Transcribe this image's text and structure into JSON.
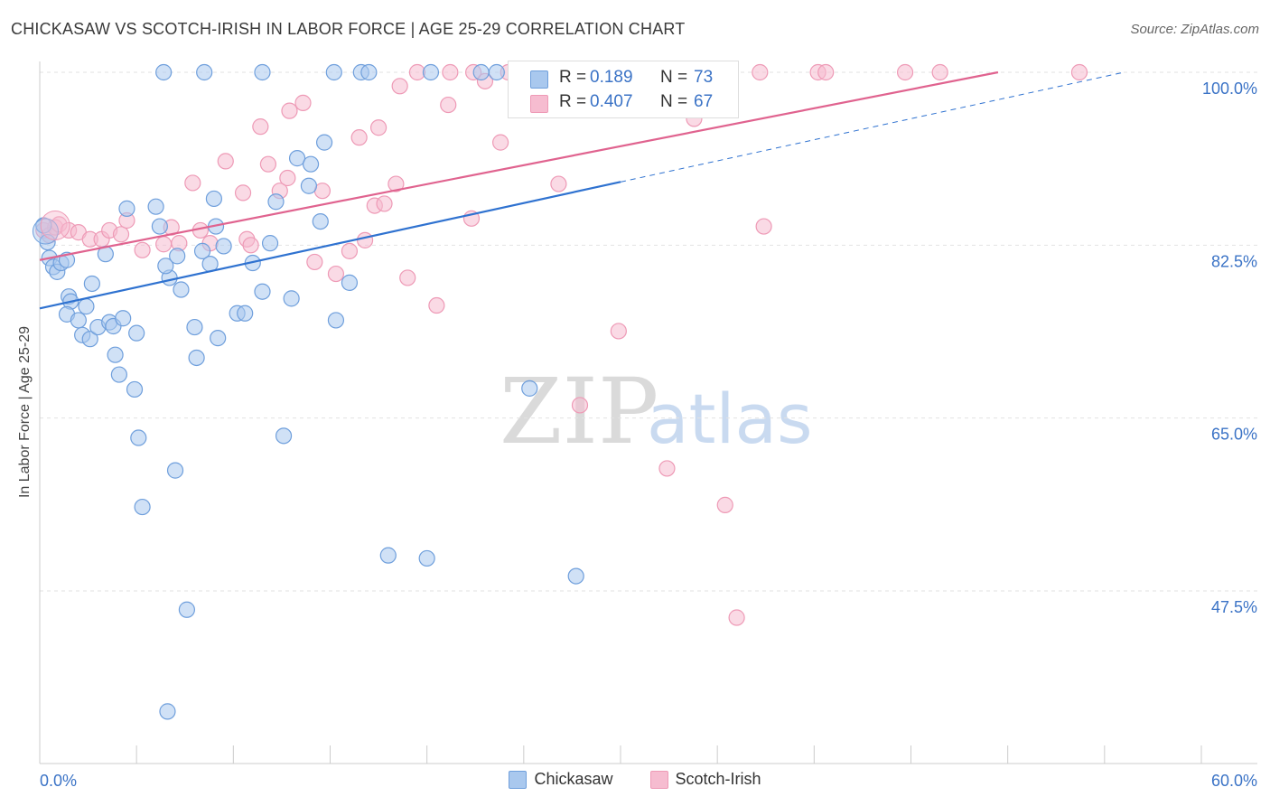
{
  "title": "CHICKASAW VS SCOTCH-IRISH IN LABOR FORCE | AGE 25-29 CORRELATION CHART",
  "source": "Source: ZipAtlas.com",
  "watermark": {
    "zip": "ZIP",
    "atlas": "atlas"
  },
  "colors": {
    "chickasaw_fill": "#a9c8ee",
    "chickasaw_stroke": "#6f9fdc",
    "chickasaw_line": "#2f72d0",
    "scotch_fill": "#f6bcd0",
    "scotch_stroke": "#ee9ab6",
    "scotch_line": "#e0638f",
    "tick_label": "#3b73c6",
    "grid": "#e2e2e2"
  },
  "legend": {
    "rows": [
      {
        "r_label": "R =",
        "r_value": "0.189",
        "n_label": "N =",
        "n_value": "73"
      },
      {
        "r_label": "R =",
        "r_value": "0.407",
        "n_label": "N =",
        "n_value": "67"
      }
    ]
  },
  "bottom_legend": [
    "Chickasaw",
    "Scotch-Irish"
  ],
  "chart_data": {
    "type": "scatter",
    "title": "CHICKASAW VS SCOTCH-IRISH IN LABOR FORCE | AGE 25-29 CORRELATION CHART",
    "xlabel": "",
    "ylabel": "In Labor Force | Age 25-29",
    "xlim": [
      0,
      60
    ],
    "ylim": [
      33,
      102
    ],
    "x_tick_labels": [
      "0.0%",
      "60.0%"
    ],
    "y_ticks": [
      47.5,
      65.0,
      82.5,
      100.0
    ],
    "y_tick_labels": [
      "47.5%",
      "65.0%",
      "82.5%",
      "100.0%"
    ],
    "grid": true,
    "legend_position": "top-center",
    "series": [
      {
        "name": "Chickasaw",
        "R": 0.189,
        "N": 73,
        "trend": {
          "x0": 0,
          "y0": 76.1,
          "x1": 30,
          "y1": 88.9,
          "dashed_to_x": 56,
          "dashed_to_y": 100.0
        },
        "points": [
          [
            0.2,
            84.5
          ],
          [
            0.4,
            82.8
          ],
          [
            0.5,
            81.2
          ],
          [
            0.7,
            80.3
          ],
          [
            0.9,
            79.8
          ],
          [
            1.1,
            80.7
          ],
          [
            1.4,
            81.0
          ],
          [
            1.5,
            77.3
          ],
          [
            1.6,
            76.8
          ],
          [
            1.4,
            75.5
          ],
          [
            2.0,
            74.9
          ],
          [
            2.2,
            73.4
          ],
          [
            2.4,
            76.3
          ],
          [
            2.6,
            73.0
          ],
          [
            2.7,
            78.6
          ],
          [
            3.0,
            74.2
          ],
          [
            3.4,
            81.6
          ],
          [
            3.6,
            74.7
          ],
          [
            3.8,
            74.3
          ],
          [
            3.9,
            71.4
          ],
          [
            4.1,
            69.4
          ],
          [
            4.9,
            67.9
          ],
          [
            4.5,
            86.2
          ],
          [
            4.3,
            75.1
          ],
          [
            5.0,
            73.6
          ],
          [
            5.1,
            63.0
          ],
          [
            5.3,
            56.0
          ],
          [
            6.0,
            86.4
          ],
          [
            6.2,
            84.4
          ],
          [
            6.7,
            79.2
          ],
          [
            7.0,
            59.7
          ],
          [
            7.3,
            78.0
          ],
          [
            7.6,
            45.6
          ],
          [
            6.5,
            80.4
          ],
          [
            7.1,
            81.4
          ],
          [
            8.0,
            74.2
          ],
          [
            8.1,
            71.1
          ],
          [
            8.4,
            81.9
          ],
          [
            8.8,
            80.6
          ],
          [
            9.2,
            73.1
          ],
          [
            9.0,
            87.2
          ],
          [
            9.1,
            84.4
          ],
          [
            9.5,
            82.4
          ],
          [
            10.2,
            75.6
          ],
          [
            10.6,
            75.6
          ],
          [
            11.0,
            80.7
          ],
          [
            11.5,
            77.8
          ],
          [
            11.9,
            82.7
          ],
          [
            12.2,
            86.9
          ],
          [
            12.6,
            63.2
          ],
          [
            13.0,
            77.1
          ],
          [
            13.3,
            91.3
          ],
          [
            13.9,
            88.5
          ],
          [
            14.0,
            90.7
          ],
          [
            14.5,
            84.9
          ],
          [
            14.7,
            92.9
          ],
          [
            15.3,
            74.9
          ],
          [
            16.0,
            78.7
          ],
          [
            18.0,
            51.1
          ],
          [
            20.0,
            50.8
          ],
          [
            25.3,
            68.0
          ],
          [
            6.6,
            35.3
          ],
          [
            6.4,
            100.0
          ],
          [
            8.5,
            100.0
          ],
          [
            11.5,
            100.0
          ],
          [
            15.2,
            100.0
          ],
          [
            16.6,
            100.0
          ],
          [
            17.0,
            100.0
          ],
          [
            20.2,
            100.0
          ],
          [
            22.8,
            100.0
          ],
          [
            23.6,
            100.0
          ],
          [
            24.8,
            100.0
          ],
          [
            27.7,
            49.0
          ]
        ]
      },
      {
        "name": "Scotch-Irish",
        "R": 0.407,
        "N": 67,
        "trend": {
          "x0": 0,
          "y0": 81.0,
          "x1": 49.5,
          "y1": 100.0
        },
        "points": [
          [
            0.2,
            84.0
          ],
          [
            0.5,
            83.5
          ],
          [
            0.8,
            84.3
          ],
          [
            1.0,
            84.6
          ],
          [
            1.5,
            84.0
          ],
          [
            2.0,
            83.8
          ],
          [
            2.6,
            83.1
          ],
          [
            3.2,
            83.1
          ],
          [
            3.6,
            84.0
          ],
          [
            4.2,
            83.6
          ],
          [
            4.5,
            85.0
          ],
          [
            5.3,
            82.0
          ],
          [
            6.4,
            82.6
          ],
          [
            6.8,
            84.3
          ],
          [
            7.2,
            82.7
          ],
          [
            7.9,
            88.8
          ],
          [
            8.3,
            84.0
          ],
          [
            8.8,
            82.7
          ],
          [
            9.6,
            91.0
          ],
          [
            10.5,
            87.8
          ],
          [
            10.7,
            83.1
          ],
          [
            10.9,
            82.5
          ],
          [
            11.4,
            94.5
          ],
          [
            11.8,
            90.7
          ],
          [
            12.4,
            88.0
          ],
          [
            12.8,
            89.3
          ],
          [
            12.9,
            96.1
          ],
          [
            13.6,
            96.9
          ],
          [
            14.2,
            80.8
          ],
          [
            14.6,
            88.0
          ],
          [
            15.3,
            79.6
          ],
          [
            16.0,
            81.9
          ],
          [
            16.8,
            83.0
          ],
          [
            17.3,
            86.5
          ],
          [
            17.8,
            86.7
          ],
          [
            17.5,
            94.4
          ],
          [
            16.5,
            93.4
          ],
          [
            18.4,
            88.7
          ],
          [
            19.0,
            79.2
          ],
          [
            20.5,
            76.4
          ],
          [
            21.1,
            96.7
          ],
          [
            22.3,
            85.2
          ],
          [
            23.0,
            99.1
          ],
          [
            23.8,
            92.9
          ],
          [
            26.8,
            88.7
          ],
          [
            27.9,
            66.3
          ],
          [
            29.9,
            73.8
          ],
          [
            32.4,
            59.9
          ],
          [
            35.4,
            56.2
          ],
          [
            36.0,
            44.8
          ],
          [
            40.2,
            100.0
          ],
          [
            37.2,
            100.0
          ],
          [
            33.8,
            95.3
          ],
          [
            31.4,
            100.0
          ],
          [
            29.0,
            100.0
          ],
          [
            27.6,
            100.0
          ],
          [
            26.4,
            100.0
          ],
          [
            24.2,
            100.0
          ],
          [
            21.2,
            100.0
          ],
          [
            19.5,
            100.0
          ],
          [
            18.6,
            98.6
          ],
          [
            22.4,
            100.0
          ],
          [
            37.4,
            84.4
          ],
          [
            40.6,
            100.0
          ],
          [
            44.7,
            100.0
          ],
          [
            46.5,
            100.0
          ],
          [
            53.7,
            100.0
          ]
        ]
      }
    ]
  }
}
